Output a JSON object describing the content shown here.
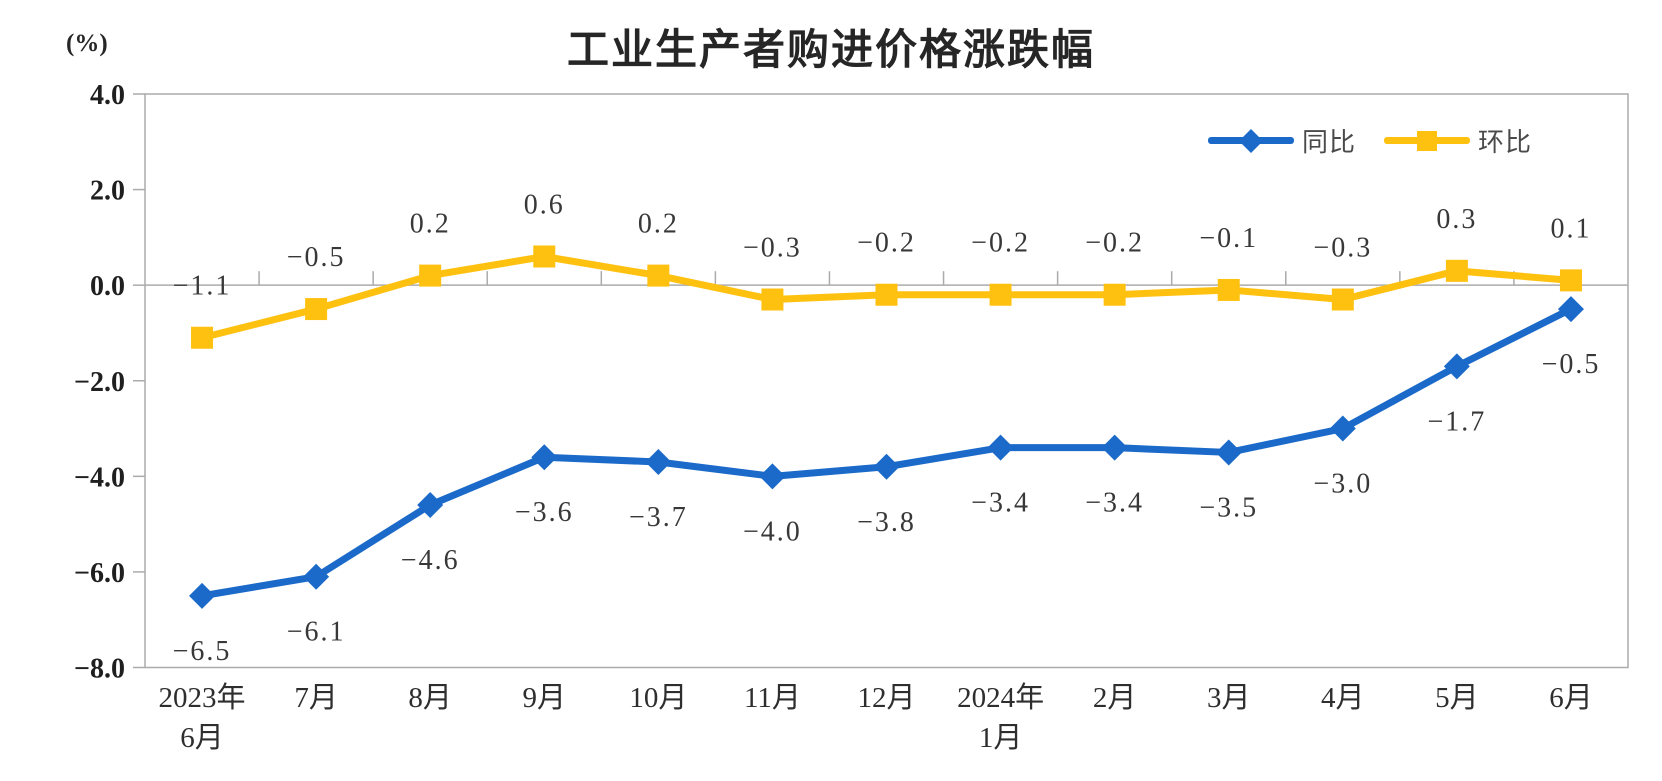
{
  "chart_data": {
    "type": "line",
    "title": "工业生产者购进价格涨跌幅",
    "ylabel": "(%)",
    "xlabel": "",
    "ylim": [
      -8,
      4
    ],
    "ytick_step": 2,
    "ytick_labels": [
      "4.0",
      "2.0",
      "0.0",
      "-2.0",
      "-4.0",
      "-6.0",
      "-8.0"
    ],
    "grid": false,
    "legend_position": "top-right",
    "axis_color": "#ABABAB",
    "categories": [
      [
        "2023年",
        "6月"
      ],
      [
        "7月"
      ],
      [
        "8月"
      ],
      [
        "9月"
      ],
      [
        "10月"
      ],
      [
        "11月"
      ],
      [
        "12月"
      ],
      [
        "2024年",
        "1月"
      ],
      [
        "2月"
      ],
      [
        "3月"
      ],
      [
        "4月"
      ],
      [
        "5月"
      ],
      [
        "6月"
      ]
    ],
    "series": [
      {
        "id": "yoy",
        "name": "同比",
        "marker": "diamond",
        "color": "#1B6AC9",
        "label_position": "below",
        "values": [
          -6.5,
          -6.1,
          -4.6,
          -3.6,
          -3.7,
          -4.0,
          -3.8,
          -3.4,
          -3.4,
          -3.5,
          -3.0,
          -1.7,
          -0.5
        ]
      },
      {
        "id": "mom",
        "name": "环比",
        "marker": "square",
        "color": "#FFC110",
        "label_position": "above",
        "values": [
          -1.1,
          -0.5,
          0.2,
          0.6,
          0.2,
          -0.3,
          -0.2,
          -0.2,
          -0.2,
          -0.1,
          -0.3,
          0.3,
          0.1
        ]
      }
    ]
  }
}
